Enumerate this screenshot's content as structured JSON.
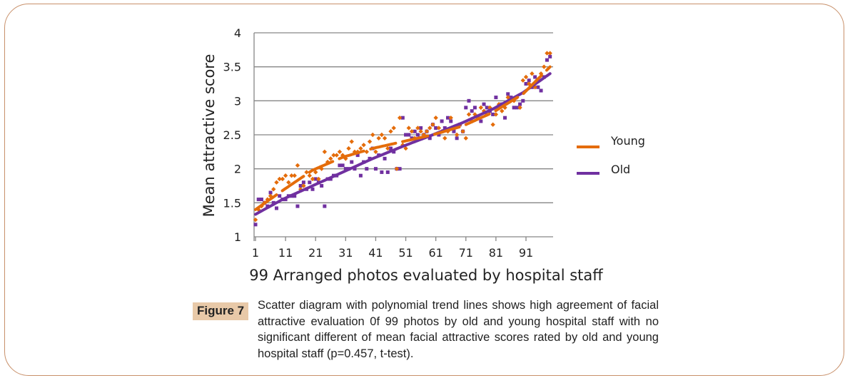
{
  "figure": {
    "label": "Figure 7",
    "caption": "Scatter diagram with polynomial trend lines shows high agreement of facial attractive evaluation 0f 99 photos by old and young hospital staff with no significant different of mean facial attractive scores rated by old and young hospital staff (p=0.457, t-test)."
  },
  "colors": {
    "young": "#e46c0a",
    "old": "#7030a0",
    "grid": "#868686",
    "frame": "#c8906a"
  },
  "chart_data": {
    "type": "scatter",
    "title": "",
    "xlabel": "99 Arranged photos evaluated by hospital staff",
    "ylabel": "Mean attractive score",
    "xlim": [
      1,
      99
    ],
    "ylim": [
      1,
      4
    ],
    "y_ticks": [
      "1",
      "1.5",
      "2",
      "2.5",
      "3",
      "3.5",
      "4"
    ],
    "x_ticks": [
      "1",
      "11",
      "21",
      "31",
      "41",
      "51",
      "61",
      "71",
      "81",
      "91"
    ],
    "grid": "horizontal",
    "legend_position": "right",
    "legend": [
      "Young",
      "Old"
    ],
    "series": [
      {
        "name": "Young",
        "marker": "diamond",
        "trendline": "polynomial (dashed)",
        "x": [
          1,
          2,
          3,
          4,
          5,
          6,
          7,
          8,
          9,
          10,
          11,
          12,
          13,
          14,
          15,
          16,
          17,
          18,
          19,
          20,
          21,
          22,
          23,
          24,
          25,
          26,
          27,
          28,
          29,
          30,
          31,
          32,
          33,
          34,
          35,
          36,
          37,
          38,
          39,
          40,
          41,
          42,
          43,
          44,
          45,
          46,
          47,
          48,
          49,
          50,
          51,
          52,
          53,
          54,
          55,
          56,
          57,
          58,
          59,
          60,
          61,
          62,
          63,
          64,
          65,
          66,
          67,
          68,
          69,
          70,
          71,
          72,
          73,
          74,
          75,
          76,
          77,
          78,
          79,
          80,
          81,
          82,
          83,
          84,
          85,
          86,
          87,
          88,
          89,
          90,
          91,
          92,
          93,
          94,
          95,
          96,
          97,
          98,
          99
        ],
        "values": [
          1.25,
          1.4,
          1.45,
          1.5,
          1.55,
          1.6,
          1.7,
          1.8,
          1.85,
          1.85,
          1.9,
          1.8,
          1.9,
          1.9,
          2.05,
          1.7,
          1.75,
          1.95,
          1.9,
          1.85,
          1.95,
          1.85,
          2.0,
          2.25,
          2.1,
          2.15,
          2.2,
          2.2,
          2.25,
          2.2,
          2.15,
          2.3,
          2.4,
          2.25,
          2.25,
          2.3,
          2.35,
          2.25,
          2.4,
          2.5,
          2.25,
          2.45,
          2.5,
          2.45,
          2.3,
          2.55,
          2.6,
          2.0,
          2.75,
          2.35,
          2.3,
          2.6,
          2.55,
          2.45,
          2.6,
          2.55,
          2.5,
          2.55,
          2.6,
          2.65,
          2.75,
          2.6,
          2.55,
          2.45,
          2.55,
          2.75,
          2.6,
          2.5,
          2.65,
          2.55,
          2.45,
          2.8,
          2.7,
          2.8,
          2.75,
          2.9,
          2.85,
          2.8,
          2.9,
          2.65,
          2.8,
          2.95,
          2.85,
          2.9,
          3.05,
          3.0,
          3.0,
          3.05,
          2.9,
          3.3,
          3.35,
          3.25,
          3.4,
          3.2,
          3.3,
          3.4,
          3.5,
          3.7,
          3.7
        ],
        "trend": [
          [
            1,
            1.4
          ],
          [
            10,
            1.68
          ],
          [
            20,
            1.98
          ],
          [
            30,
            2.17
          ],
          [
            40,
            2.3
          ],
          [
            50,
            2.4
          ],
          [
            60,
            2.5
          ],
          [
            70,
            2.63
          ],
          [
            80,
            2.83
          ],
          [
            90,
            3.1
          ],
          [
            99,
            3.5
          ]
        ]
      },
      {
        "name": "Old",
        "marker": "square",
        "trendline": "polynomial",
        "x": [
          1,
          2,
          3,
          4,
          5,
          6,
          7,
          8,
          9,
          10,
          11,
          12,
          13,
          14,
          15,
          16,
          17,
          18,
          19,
          20,
          21,
          22,
          23,
          24,
          25,
          26,
          27,
          28,
          29,
          30,
          31,
          32,
          33,
          34,
          35,
          36,
          37,
          38,
          39,
          40,
          41,
          42,
          43,
          44,
          45,
          46,
          47,
          48,
          49,
          50,
          51,
          52,
          53,
          54,
          55,
          56,
          57,
          58,
          59,
          60,
          61,
          62,
          63,
          64,
          65,
          66,
          67,
          68,
          69,
          70,
          71,
          72,
          73,
          74,
          75,
          76,
          77,
          78,
          79,
          80,
          81,
          82,
          83,
          84,
          85,
          86,
          87,
          88,
          89,
          90,
          91,
          92,
          93,
          94,
          95,
          96,
          97,
          98,
          99
        ],
        "values": [
          1.18,
          1.55,
          1.55,
          1.5,
          1.45,
          1.65,
          1.5,
          1.42,
          1.6,
          1.55,
          1.55,
          1.6,
          1.6,
          1.6,
          1.45,
          1.75,
          1.8,
          1.7,
          1.8,
          1.7,
          1.85,
          1.8,
          1.75,
          1.45,
          1.85,
          1.85,
          1.9,
          1.9,
          2.05,
          2.05,
          2.0,
          2.0,
          2.1,
          2.0,
          2.2,
          1.9,
          2.1,
          2.0,
          2.15,
          2.3,
          2.0,
          2.2,
          1.95,
          2.15,
          1.95,
          2.3,
          2.25,
          2.0,
          2.0,
          2.75,
          2.5,
          2.5,
          2.45,
          2.55,
          2.5,
          2.6,
          2.5,
          2.55,
          2.45,
          2.65,
          2.6,
          2.5,
          2.7,
          2.6,
          2.75,
          2.7,
          2.55,
          2.45,
          2.65,
          2.55,
          2.9,
          3.0,
          2.85,
          2.9,
          2.75,
          2.7,
          2.95,
          2.9,
          2.85,
          2.8,
          3.05,
          2.9,
          2.95,
          2.75,
          3.1,
          3.05,
          2.9,
          2.9,
          2.95,
          3.0,
          3.25,
          3.3,
          3.2,
          3.35,
          3.2,
          3.15,
          3.35,
          3.6,
          3.65
        ],
        "trend": [
          [
            1,
            1.33
          ],
          [
            10,
            1.55
          ],
          [
            20,
            1.75
          ],
          [
            30,
            1.95
          ],
          [
            40,
            2.15
          ],
          [
            50,
            2.33
          ],
          [
            60,
            2.5
          ],
          [
            70,
            2.68
          ],
          [
            80,
            2.88
          ],
          [
            90,
            3.12
          ],
          [
            99,
            3.4
          ]
        ]
      }
    ]
  }
}
